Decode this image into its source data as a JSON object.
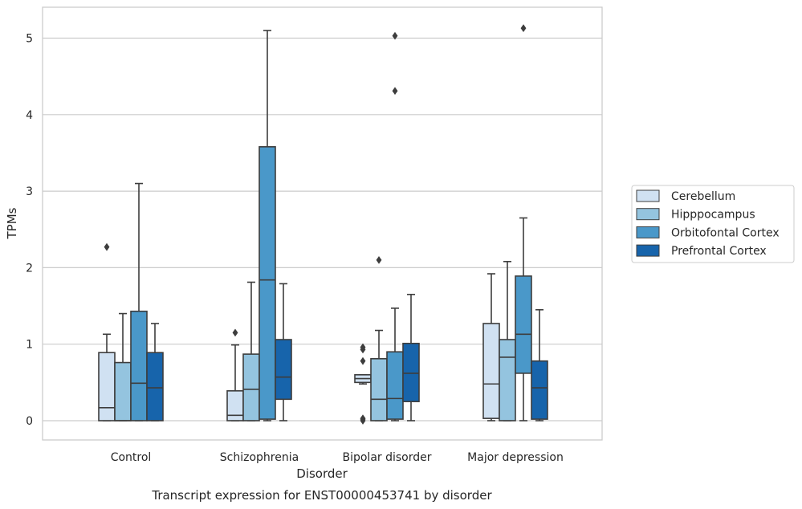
{
  "chart_data": {
    "type": "box",
    "title": "",
    "caption": "Transcript expression for ENST00000453741 by disorder",
    "xlabel": "Disorder",
    "ylabel": "TPMs",
    "ylim": [
      -0.25,
      5.4
    ],
    "yticks": [
      0,
      1,
      2,
      3,
      4,
      5
    ],
    "grid": "horizontal",
    "legend_position": "right",
    "categories": [
      "Control",
      "Schizophrenia",
      "Bipolar disorder",
      "Major depression"
    ],
    "series": [
      {
        "name": "Cerebellum",
        "color": "#d0e1f2",
        "boxes": [
          {
            "whislo": 0,
            "q1": 0,
            "med": 0.17,
            "q3": 0.89,
            "whishi": 1.13,
            "fliers": [
              2.27
            ]
          },
          {
            "whislo": 0,
            "q1": 0,
            "med": 0.07,
            "q3": 0.39,
            "whishi": 0.99,
            "fliers": [
              1.15
            ]
          },
          {
            "whislo": 0.48,
            "q1": 0.5,
            "med": 0.55,
            "q3": 0.6,
            "whishi": 0.6,
            "fliers": [
              0.0,
              0.02,
              0.03,
              0.78,
              0.93,
              0.96
            ]
          },
          {
            "whislo": 0,
            "q1": 0.03,
            "med": 0.48,
            "q3": 1.27,
            "whishi": 1.92,
            "fliers": []
          }
        ]
      },
      {
        "name": "Hipppocampus",
        "color": "#94c4df",
        "boxes": [
          {
            "whislo": 0,
            "q1": 0,
            "med": 0.0,
            "q3": 0.76,
            "whishi": 1.4,
            "fliers": []
          },
          {
            "whislo": 0,
            "q1": 0,
            "med": 0.41,
            "q3": 0.87,
            "whishi": 1.81,
            "fliers": []
          },
          {
            "whislo": 0,
            "q1": 0,
            "med": 0.28,
            "q3": 0.81,
            "whishi": 1.18,
            "fliers": [
              2.1
            ]
          },
          {
            "whislo": 0,
            "q1": 0,
            "med": 0.83,
            "q3": 1.06,
            "whishi": 2.08,
            "fliers": []
          }
        ]
      },
      {
        "name": "Orbitofontal Cortex",
        "color": "#4a98c9",
        "boxes": [
          {
            "whislo": 0,
            "q1": 0,
            "med": 0.49,
            "q3": 1.43,
            "whishi": 3.1,
            "fliers": []
          },
          {
            "whislo": 0,
            "q1": 0.02,
            "med": 1.84,
            "q3": 3.58,
            "whishi": 5.1,
            "fliers": []
          },
          {
            "whislo": 0,
            "q1": 0.02,
            "med": 0.29,
            "q3": 0.9,
            "whishi": 1.47,
            "fliers": [
              4.31,
              5.03
            ]
          },
          {
            "whislo": 0,
            "q1": 0.62,
            "med": 1.13,
            "q3": 1.89,
            "whishi": 2.65,
            "fliers": [
              5.13
            ]
          }
        ]
      },
      {
        "name": "Prefrontal Cortex",
        "color": "#1764ab",
        "boxes": [
          {
            "whislo": 0,
            "q1": 0,
            "med": 0.43,
            "q3": 0.89,
            "whishi": 1.27,
            "fliers": []
          },
          {
            "whislo": 0,
            "q1": 0.28,
            "med": 0.57,
            "q3": 1.06,
            "whishi": 1.79,
            "fliers": []
          },
          {
            "whislo": 0,
            "q1": 0.25,
            "med": 0.62,
            "q3": 1.01,
            "whishi": 1.65,
            "fliers": []
          },
          {
            "whislo": 0,
            "q1": 0.02,
            "med": 0.43,
            "q3": 0.78,
            "whishi": 1.45,
            "fliers": []
          }
        ]
      }
    ]
  }
}
